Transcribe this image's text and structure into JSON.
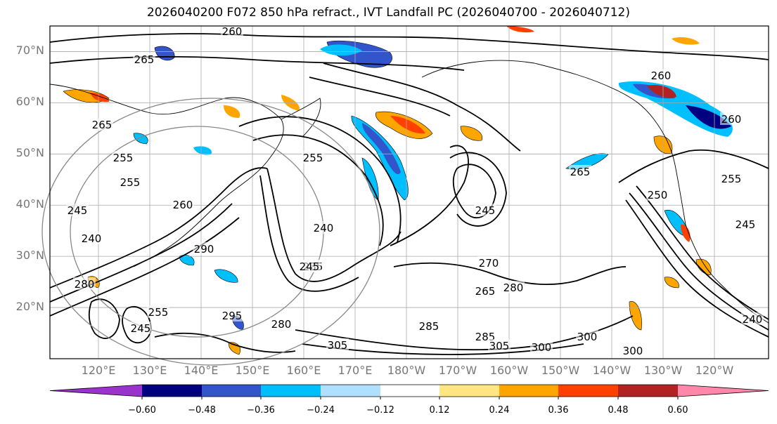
{
  "title": "2026040200 F072 850 hPa refract., IVT Landfall PC (2026040700 - 2026040712)",
  "map": {
    "lat_labels": [
      "70°N",
      "60°N",
      "50°N",
      "40°N",
      "30°N",
      "20°N"
    ],
    "lat_values": [
      70,
      60,
      50,
      40,
      30,
      20
    ],
    "lon_labels": [
      "120°E",
      "130°E",
      "140°E",
      "150°E",
      "160°E",
      "170°E",
      "180°W",
      "170°W",
      "160°W",
      "150°W",
      "140°W",
      "130°W",
      "120°W"
    ],
    "lat_range": [
      10,
      75
    ],
    "contour_labels": [
      "260",
      "265",
      "265",
      "255",
      "255",
      "260",
      "240",
      "245",
      "290",
      "255",
      "240",
      "235",
      "245",
      "245",
      "260",
      "265",
      "270",
      "265",
      "280",
      "250",
      "245",
      "255",
      "260",
      "285",
      "295",
      "305",
      "300",
      "305",
      "300",
      "300",
      "280",
      "255",
      "245",
      "240",
      "285",
      "280"
    ]
  },
  "colorbar": {
    "labels": [
      "−0.60",
      "−0.48",
      "−0.36",
      "−0.24",
      "−0.12",
      "0.12",
      "0.24",
      "0.36",
      "0.48",
      "0.60"
    ],
    "colors": [
      "#9933cc",
      "#000080",
      "#3355cc",
      "#00bfff",
      "#b0e0ff",
      "#ffffff",
      "#ffe680",
      "#ffa500",
      "#ff4000",
      "#b22222",
      "#ff88aa"
    ]
  }
}
